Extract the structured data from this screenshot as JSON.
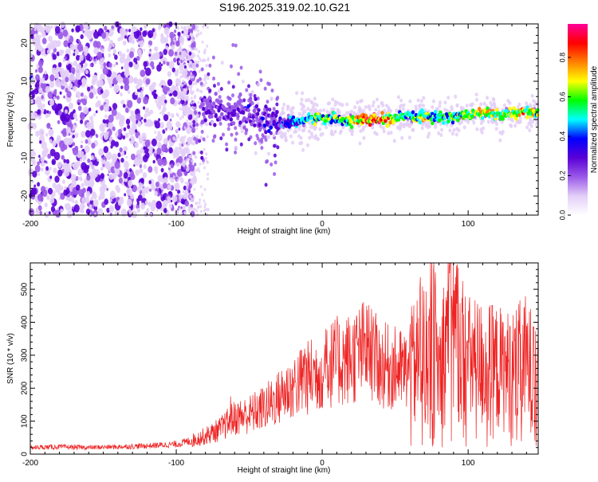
{
  "title": "S196.2025.319.02.10.G21",
  "chart_data": [
    {
      "type": "heatmap",
      "xlabel": "Height of straight line (km)",
      "ylabel": "Frequency (Hz)",
      "xlim": [
        -200,
        148
      ],
      "ylim": [
        -25,
        25
      ],
      "x_ticks": [
        -200,
        -100,
        0,
        100
      ],
      "x_tick_labels": [
        "-200",
        "-100",
        "0",
        "100"
      ],
      "y_ticks": [
        -20,
        -10,
        0,
        10,
        20
      ],
      "y_tick_labels": [
        "-20",
        "-10",
        "0",
        "10",
        "20"
      ],
      "colorbar": {
        "label": "Normalized spectral amplitude",
        "range": [
          0,
          0.97
        ],
        "ticks": [
          0,
          0.2,
          0.4,
          0.6,
          0.8
        ],
        "tick_labels": [
          "0.0",
          "0.2",
          "0.4",
          "0.6",
          "0.8"
        ],
        "colors": [
          "#ffffff",
          "#e3cef7",
          "#9b59e8",
          "#5a00d6",
          "#0000ff",
          "#00ffff",
          "#00ff00",
          "#ffff00",
          "#ff8000",
          "#ff0000",
          "#ff0099"
        ]
      },
      "ridge": {
        "x": [
          -80,
          -60,
          -40,
          -30,
          -20,
          -10,
          0,
          10,
          20,
          30,
          40,
          50,
          60,
          70,
          80,
          90,
          100,
          110,
          120,
          130,
          140,
          148
        ],
        "frequency": [
          3,
          2,
          0,
          -1,
          -0.8,
          0,
          0.5,
          0,
          -0.3,
          0,
          0,
          0.3,
          0.7,
          0.8,
          0.5,
          0.8,
          1.2,
          1.7,
          1.3,
          1.5,
          2,
          1.5
        ],
        "amplitude": [
          0.3,
          0.3,
          0.35,
          0.4,
          0.5,
          0.6,
          0.7,
          0.6,
          0.7,
          0.95,
          0.9,
          0.7,
          0.6,
          0.7,
          0.6,
          0.65,
          0.7,
          0.75,
          0.7,
          0.75,
          0.8,
          0.7
        ]
      }
    },
    {
      "type": "line",
      "xlabel": "Height of straight line (km)",
      "ylabel": "SNR (10 * v/v)",
      "xlim": [
        -200,
        148
      ],
      "ylim": [
        0,
        580
      ],
      "x_ticks": [
        -200,
        -100,
        0,
        100
      ],
      "x_tick_labels": [
        "-200",
        "-100",
        "0",
        "100"
      ],
      "y_ticks": [
        0,
        100,
        200,
        300,
        400,
        500
      ],
      "y_tick_labels": [
        "0",
        "100",
        "200",
        "300",
        "400",
        "500"
      ],
      "color": "#ee2222",
      "series": [
        {
          "name": "SNR",
          "x": [
            -200,
            -180,
            -160,
            -140,
            -120,
            -100,
            -90,
            -80,
            -70,
            -60,
            -50,
            -40,
            -30,
            -20,
            -10,
            0,
            10,
            20,
            30,
            40,
            50,
            60,
            70,
            75,
            80,
            85,
            88,
            90,
            100,
            110,
            120,
            130,
            140,
            148
          ],
          "values": [
            20,
            22,
            20,
            22,
            25,
            30,
            40,
            55,
            75,
            110,
            120,
            140,
            170,
            210,
            230,
            260,
            280,
            290,
            320,
            270,
            260,
            250,
            300,
            400,
            250,
            350,
            530,
            380,
            280,
            270,
            260,
            250,
            280,
            220
          ]
        }
      ]
    }
  ]
}
